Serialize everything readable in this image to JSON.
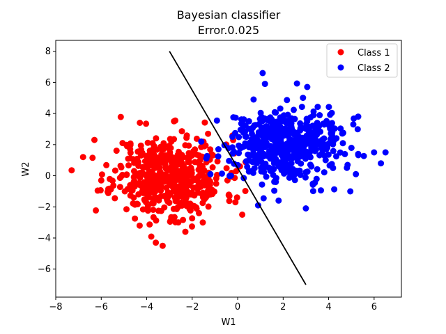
{
  "chart_data": {
    "type": "scatter",
    "title": "Bayesian classifier",
    "subtitle": "Error.0.025",
    "xlabel": "W1",
    "ylabel": "W2",
    "xlim": [
      -8,
      7.2
    ],
    "ylim": [
      -7.8,
      8.7
    ],
    "xticks": [
      -8,
      -6,
      -4,
      -2,
      0,
      2,
      4,
      6
    ],
    "yticks": [
      -6,
      -4,
      -2,
      0,
      2,
      4,
      6,
      8
    ],
    "grid": false,
    "legend_position": "top-right",
    "series": [
      {
        "name": "Class 1",
        "color": "#ff0000",
        "center": [
          -3,
          0
        ],
        "std": [
          1.2,
          1.3
        ],
        "count": 500,
        "seed": 11,
        "extra_points": [
          [
            -7.3,
            0.35
          ],
          [
            -6.8,
            1.2
          ],
          [
            -6.3,
            2.3
          ],
          [
            -3.6,
            -4.3
          ],
          [
            -3.3,
            -4.5
          ],
          [
            -2.3,
            -3.6
          ],
          [
            -0.1,
            -1.7
          ],
          [
            0.2,
            -2.5
          ],
          [
            -0.5,
            2.0
          ],
          [
            -2.8,
            3.5
          ],
          [
            -4.3,
            3.4
          ],
          [
            0.1,
            0.6
          ],
          [
            -1.3,
            2.7
          ],
          [
            -6.0,
            -0.3
          ]
        ]
      },
      {
        "name": "Class 2",
        "color": "#0000ff",
        "center": [
          2,
          2
        ],
        "std": [
          1.25,
          1.15
        ],
        "count": 500,
        "seed": 29,
        "extra_points": [
          [
            1.1,
            6.6
          ],
          [
            1.2,
            5.9
          ],
          [
            6.0,
            1.5
          ],
          [
            6.5,
            1.5
          ],
          [
            6.3,
            0.8
          ],
          [
            5.3,
            3.8
          ],
          [
            5.3,
            1.4
          ],
          [
            0.9,
            -1.9
          ],
          [
            1.8,
            -1.6
          ],
          [
            3.0,
            -2.1
          ],
          [
            -1.2,
            0.1
          ],
          [
            -1.6,
            2.2
          ],
          [
            5.2,
            0.1
          ],
          [
            0.7,
            4.9
          ]
        ]
      }
    ],
    "decision_boundary": {
      "color": "#000000",
      "points": [
        [
          -3,
          8
        ],
        [
          3,
          -7
        ]
      ]
    }
  }
}
